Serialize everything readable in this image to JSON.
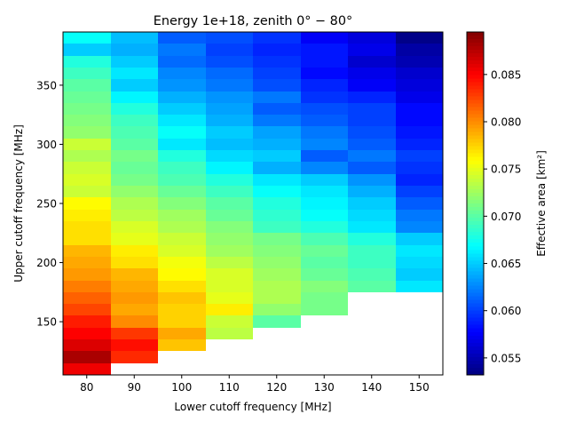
{
  "chart_data": {
    "type": "heatmap",
    "title": "Energy 1e+18, zenith 0$^\\circ$ − 80$^\\circ$",
    "title_display": "Energy 1e+18, zenith 0° − 80°",
    "xlabel": "Lower cutoff frequency [MHz]",
    "ylabel": "Upper cutoff frequency [MHz]",
    "colorbar_label": "Effective area [km²]",
    "xlim": [
      75,
      155
    ],
    "ylim": [
      105,
      395
    ],
    "clim": [
      0.0532,
      0.0895
    ],
    "colormap": "jet",
    "x_ticks": [
      80,
      90,
      100,
      110,
      120,
      130,
      140,
      150
    ],
    "x_tick_labels": [
      "80",
      "90",
      "100",
      "110",
      "120",
      "130",
      "140",
      "150"
    ],
    "y_ticks": [
      150,
      200,
      250,
      300,
      350
    ],
    "y_tick_labels": [
      "150",
      "200",
      "250",
      "300",
      "350"
    ],
    "colorbar_ticks": [
      0.055,
      0.06,
      0.065,
      0.07,
      0.075,
      0.08,
      0.085
    ],
    "colorbar_tick_labels": [
      "0.055",
      "0.060",
      "0.065",
      "0.070",
      "0.075",
      "0.080",
      "0.085"
    ],
    "x_centers": [
      80,
      90,
      100,
      110,
      120,
      130,
      140,
      150
    ],
    "y_centers": [
      110,
      120,
      130,
      140,
      150,
      160,
      170,
      180,
      190,
      200,
      210,
      220,
      230,
      240,
      250,
      260,
      270,
      280,
      290,
      300,
      310,
      320,
      330,
      340,
      350,
      360,
      370,
      380,
      390
    ],
    "cell_width": 10,
    "cell_height": 10,
    "values": [
      [
        0.0855,
        null,
        null,
        null,
        null,
        null,
        null,
        null
      ],
      [
        0.088,
        0.0835,
        null,
        null,
        null,
        null,
        null,
        null
      ],
      [
        0.0862,
        0.0845,
        0.078,
        null,
        null,
        null,
        null,
        null
      ],
      [
        0.085,
        0.083,
        0.079,
        0.0735,
        null,
        null,
        null,
        null
      ],
      [
        0.084,
        0.08,
        0.0775,
        0.074,
        0.07,
        null,
        null,
        null
      ],
      [
        0.0825,
        0.079,
        0.0775,
        0.0765,
        0.072,
        0.071,
        null,
        null
      ],
      [
        0.0815,
        0.0795,
        0.078,
        0.075,
        0.073,
        0.071,
        null,
        null
      ],
      [
        0.0805,
        0.079,
        0.077,
        0.0745,
        0.073,
        0.0715,
        0.07,
        0.066
      ],
      [
        0.0795,
        0.0785,
        0.076,
        0.0745,
        0.0725,
        0.0705,
        0.0695,
        0.065
      ],
      [
        0.079,
        0.077,
        0.0755,
        0.0735,
        0.072,
        0.07,
        0.069,
        0.0655
      ],
      [
        0.0785,
        0.0765,
        0.0745,
        0.0725,
        0.0715,
        0.0705,
        0.069,
        0.066
      ],
      [
        0.077,
        0.075,
        0.074,
        0.072,
        0.071,
        0.0695,
        0.068,
        0.065
      ],
      [
        0.077,
        0.0745,
        0.073,
        0.0715,
        0.069,
        0.068,
        0.066,
        0.0625
      ],
      [
        0.0765,
        0.0735,
        0.0725,
        0.0705,
        0.0685,
        0.067,
        0.0655,
        0.062
      ],
      [
        0.076,
        0.073,
        0.0715,
        0.07,
        0.068,
        0.0665,
        0.065,
        0.061
      ],
      [
        0.074,
        0.072,
        0.0705,
        0.069,
        0.067,
        0.066,
        0.064,
        0.06
      ],
      [
        0.0745,
        0.071,
        0.0695,
        0.068,
        0.066,
        0.065,
        0.063,
        0.059
      ],
      [
        0.074,
        0.0705,
        0.069,
        0.0665,
        0.064,
        0.0625,
        0.061,
        0.0595
      ],
      [
        0.073,
        0.071,
        0.068,
        0.0655,
        0.065,
        0.061,
        0.062,
        0.06
      ],
      [
        0.074,
        0.07,
        0.066,
        0.0645,
        0.064,
        0.0625,
        0.061,
        0.059
      ],
      [
        0.072,
        0.0695,
        0.067,
        0.065,
        0.0635,
        0.062,
        0.0605,
        0.0585
      ],
      [
        0.0715,
        0.069,
        0.066,
        0.064,
        0.062,
        0.061,
        0.06,
        0.058
      ],
      [
        0.071,
        0.068,
        0.065,
        0.0635,
        0.061,
        0.0605,
        0.06,
        0.058
      ],
      [
        0.0705,
        0.0665,
        0.064,
        0.063,
        0.062,
        0.0595,
        0.059,
        0.057
      ],
      [
        0.07,
        0.065,
        0.063,
        0.062,
        0.0605,
        0.059,
        0.0575,
        0.0565
      ],
      [
        0.069,
        0.066,
        0.0625,
        0.0615,
        0.06,
        0.058,
        0.057,
        0.056
      ],
      [
        0.068,
        0.065,
        0.0615,
        0.0605,
        0.0595,
        0.0585,
        0.056,
        0.055
      ],
      [
        0.065,
        0.064,
        0.062,
        0.06,
        0.059,
        0.0585,
        0.057,
        0.0545
      ],
      [
        0.067,
        0.0645,
        0.061,
        0.0605,
        0.0595,
        0.0575,
        0.0565,
        0.0535
      ]
    ]
  }
}
